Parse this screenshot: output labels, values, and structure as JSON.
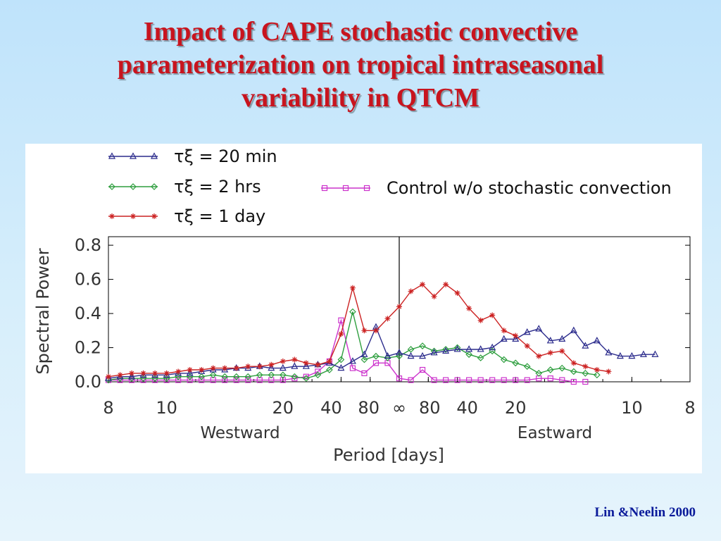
{
  "slide": {
    "title_lines": [
      "Impact of CAPE stochastic convective",
      "parameterization on tropical intraseasonal",
      "variability in QTCM"
    ],
    "citation": "Lin &Neelin 2000"
  },
  "chart_data": {
    "type": "line",
    "title": "",
    "xlabel": "Period [days]",
    "ylabel": "Spectral Power",
    "ylim": [
      0,
      0.85
    ],
    "yticks": [
      "0.0",
      "0.2",
      "0.4",
      "0.6",
      "0.8"
    ],
    "xtick_labels": [
      "8",
      "10",
      "20",
      "40",
      "80",
      "∞",
      "80",
      "40",
      "20",
      "10",
      "8"
    ],
    "direction_labels": {
      "west": "Westward",
      "east": "Eastward"
    },
    "center_divider": "∞",
    "grid": false,
    "legend_position": "top",
    "x_frequency": [
      -0.125,
      -0.12,
      -0.115,
      -0.11,
      -0.105,
      -0.1,
      -0.095,
      -0.09,
      -0.085,
      -0.08,
      -0.075,
      -0.07,
      -0.065,
      -0.06,
      -0.055,
      -0.05,
      -0.045,
      -0.04,
      -0.035,
      -0.03,
      -0.025,
      -0.02,
      -0.015,
      -0.01,
      -0.005,
      0.0,
      0.005,
      0.01,
      0.015,
      0.02,
      0.025,
      0.03,
      0.035,
      0.04,
      0.045,
      0.05,
      0.055,
      0.06,
      0.065,
      0.07,
      0.075,
      0.08,
      0.085,
      0.09,
      0.095,
      0.1,
      0.105,
      0.11,
      0.115,
      0.12,
      0.125
    ],
    "series": [
      {
        "name": "τξ = 20 min",
        "color": "#2b2b8c",
        "marker": "triangle",
        "values": [
          0.02,
          0.03,
          0.03,
          0.04,
          0.04,
          0.04,
          0.05,
          0.05,
          0.06,
          0.07,
          0.07,
          0.08,
          0.08,
          0.09,
          0.08,
          0.08,
          0.09,
          0.09,
          0.1,
          0.11,
          0.08,
          0.12,
          0.16,
          0.32,
          0.15,
          0.17,
          0.15,
          0.15,
          0.17,
          0.18,
          0.19,
          0.19,
          0.19,
          0.2,
          0.25,
          0.25,
          0.29,
          0.31,
          0.24,
          0.25,
          0.3,
          0.21,
          0.24,
          0.17,
          0.15,
          0.15,
          0.16,
          0.16,
          null,
          null,
          null
        ]
      },
      {
        "name": "τξ = 2 hrs",
        "color": "#2e9e3e",
        "marker": "diamond",
        "values": [
          0.01,
          0.02,
          0.02,
          0.02,
          0.02,
          0.02,
          0.03,
          0.03,
          0.03,
          0.04,
          0.03,
          0.03,
          0.03,
          0.04,
          0.04,
          0.04,
          0.03,
          0.02,
          0.04,
          0.07,
          0.13,
          0.41,
          0.13,
          0.15,
          0.14,
          0.15,
          0.19,
          0.21,
          0.18,
          0.19,
          0.2,
          0.16,
          0.14,
          0.18,
          0.13,
          0.11,
          0.09,
          0.05,
          0.07,
          0.08,
          0.06,
          0.05,
          0.04,
          null,
          null,
          null,
          null,
          null,
          null,
          null,
          null
        ]
      },
      {
        "name": "τξ = 1 day",
        "color": "#cc2222",
        "marker": "star",
        "values": [
          0.03,
          0.04,
          0.05,
          0.05,
          0.05,
          0.05,
          0.06,
          0.07,
          0.07,
          0.08,
          0.08,
          0.08,
          0.09,
          0.09,
          0.1,
          0.12,
          0.13,
          0.11,
          0.1,
          0.12,
          0.28,
          0.55,
          0.3,
          0.3,
          0.37,
          0.44,
          0.53,
          0.57,
          0.5,
          0.57,
          0.52,
          0.43,
          0.36,
          0.39,
          0.3,
          0.27,
          0.21,
          0.15,
          0.17,
          0.18,
          0.11,
          0.09,
          0.07,
          0.06,
          null,
          null,
          null,
          null,
          null,
          null,
          null
        ]
      },
      {
        "name": "Control w/o stochastic convection",
        "color": "#cc33cc",
        "marker": "square",
        "values": [
          0.01,
          0.01,
          0.01,
          0.01,
          0.01,
          0.01,
          0.01,
          0.01,
          0.01,
          0.01,
          0.01,
          0.01,
          0.01,
          0.01,
          0.01,
          0.01,
          0.02,
          0.03,
          0.06,
          0.12,
          0.36,
          0.08,
          0.05,
          0.11,
          0.11,
          0.02,
          0.01,
          0.07,
          0.01,
          0.01,
          0.01,
          0.01,
          0.01,
          0.01,
          0.01,
          0.01,
          0.01,
          0.02,
          0.02,
          0.01,
          0.0,
          0.0,
          null,
          null,
          null,
          null,
          null,
          null,
          null,
          null,
          null
        ]
      }
    ]
  }
}
